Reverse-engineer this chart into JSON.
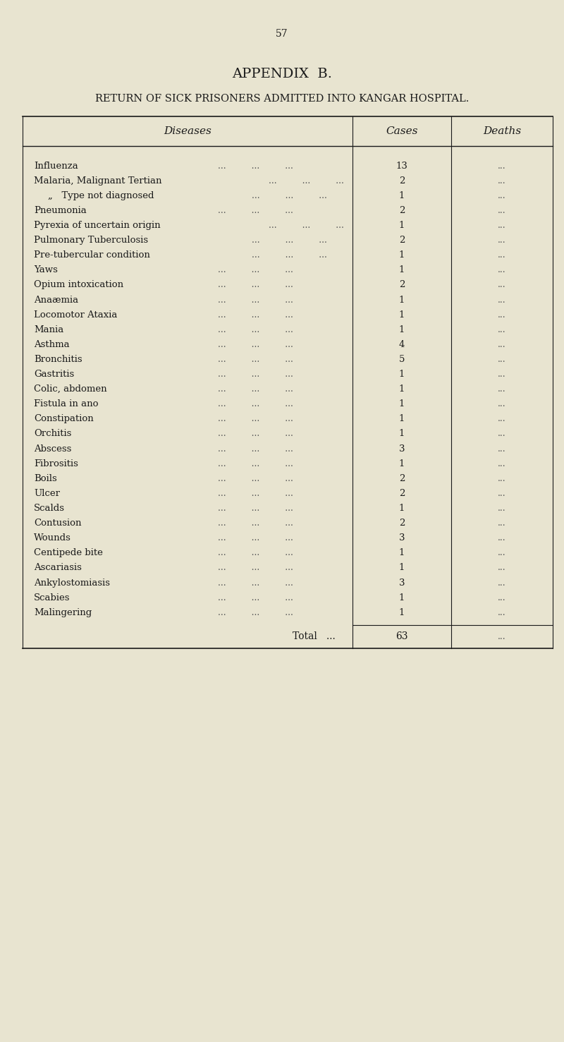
{
  "page_number": "57",
  "title1": "APPENDIX  B.",
  "title2": "RETURN OF SICK PRISONERS ADMITTED INTO KANGAR HOSPITAL.",
  "col_headers": [
    "Diseases",
    "Cases",
    "Deaths"
  ],
  "rows": [
    [
      "Influenza",
      "13",
      "..."
    ],
    [
      "Malaria, Malignant Tertian",
      "2",
      "..."
    ],
    [
      "„   Type not diagnosed",
      "1",
      "..."
    ],
    [
      "Pneumonia",
      "2",
      "..."
    ],
    [
      "Pyrexia of uncertain origin",
      "1",
      "..."
    ],
    [
      "Pulmonary Tuberculosis",
      "2",
      "..."
    ],
    [
      "Pre-tubercular condition",
      "1",
      "..."
    ],
    [
      "Yaws",
      "1",
      "..."
    ],
    [
      "Opium intoxication",
      "2",
      "..."
    ],
    [
      "Anaæmia",
      "1",
      "..."
    ],
    [
      "Locomotor Ataxia",
      "1",
      "..."
    ],
    [
      "Mania",
      "1",
      "..."
    ],
    [
      "Asthma",
      "4",
      "..."
    ],
    [
      "Bronchitis",
      "5",
      "..."
    ],
    [
      "Gastritis",
      "1",
      "..."
    ],
    [
      "Colic, abdomen",
      "1",
      "..."
    ],
    [
      "Fistula in ano",
      "1",
      "..."
    ],
    [
      "Constipation",
      "1",
      "..."
    ],
    [
      "Orchitis",
      "1",
      "..."
    ],
    [
      "Abscess",
      "3",
      "..."
    ],
    [
      "Fibrositis",
      "1",
      "..."
    ],
    [
      "Boils",
      "2",
      "..."
    ],
    [
      "Ulcer",
      "2",
      "..."
    ],
    [
      "Scalds",
      "1",
      "..."
    ],
    [
      "Contusion",
      "2",
      "..."
    ],
    [
      "Wounds",
      "3",
      "..."
    ],
    [
      "Centipede bite",
      "1",
      "..."
    ],
    [
      "Ascariasis",
      "1",
      "..."
    ],
    [
      "Ankylostomiasis",
      "3",
      "..."
    ],
    [
      "Scabies",
      "1",
      "..."
    ],
    [
      "Malingering",
      "1",
      "..."
    ]
  ],
  "total_label": "Total",
  "total_cases": "63",
  "total_deaths": "...",
  "bg_color": "#e8e4d0",
  "text_color": "#1a1a1a",
  "dots_color": "#555555"
}
